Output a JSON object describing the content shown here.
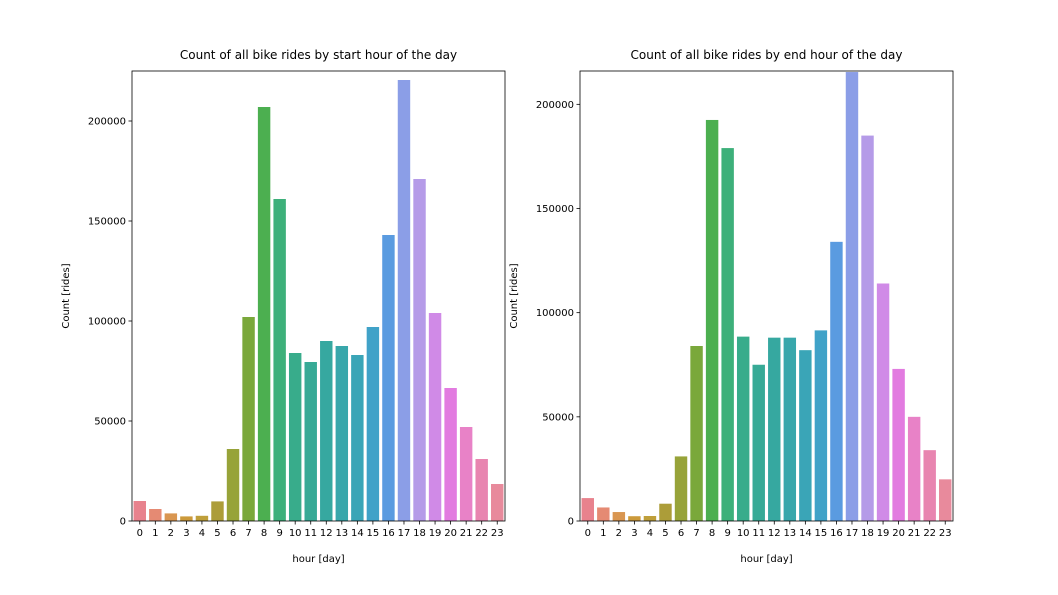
{
  "chart_data": [
    {
      "type": "bar",
      "title": "Count of all bike rides by start hour of the day",
      "xlabel": "hour [day]",
      "ylabel": "Count [rides]",
      "ylim": [
        0,
        225000
      ],
      "yticks": [
        0,
        50000,
        100000,
        150000,
        200000
      ],
      "ytick_labels": [
        "0",
        "50000",
        "100000",
        "150000",
        "200000"
      ],
      "grid": false,
      "categories": [
        "0",
        "1",
        "2",
        "3",
        "4",
        "5",
        "6",
        "7",
        "8",
        "9",
        "10",
        "11",
        "12",
        "13",
        "14",
        "15",
        "16",
        "17",
        "18",
        "19",
        "20",
        "21",
        "22",
        "23"
      ],
      "values": [
        10000,
        6000,
        3800,
        2300,
        2600,
        9800,
        36000,
        102000,
        207000,
        161000,
        84000,
        79500,
        90000,
        87500,
        83000,
        97000,
        143000,
        220500,
        171000,
        104000,
        66500,
        47000,
        31000,
        18500
      ]
    },
    {
      "type": "bar",
      "title": "Count of all bike rides by end hour of the day",
      "xlabel": "hour [day]",
      "ylabel": "Count [rides]",
      "ylim": [
        0,
        216000
      ],
      "yticks": [
        0,
        50000,
        100000,
        150000,
        200000
      ],
      "ytick_labels": [
        "0",
        "50000",
        "100000",
        "150000",
        "200000"
      ],
      "grid": false,
      "categories": [
        "0",
        "1",
        "2",
        "3",
        "4",
        "5",
        "6",
        "7",
        "8",
        "9",
        "10",
        "11",
        "12",
        "13",
        "14",
        "15",
        "16",
        "17",
        "18",
        "19",
        "20",
        "21",
        "22",
        "23"
      ],
      "values": [
        11000,
        6500,
        4300,
        2300,
        2400,
        8300,
        31000,
        84000,
        192500,
        179000,
        88500,
        75000,
        88000,
        88000,
        82000,
        91500,
        134000,
        215500,
        185000,
        114000,
        73000,
        50000,
        34000,
        20000
      ]
    }
  ],
  "palette": [
    "#e8828d",
    "#e58a73",
    "#d99651",
    "#cc9a3b",
    "#bf9f3a",
    "#ac9d39",
    "#97a339",
    "#7aa83b",
    "#4caf50",
    "#3db07a",
    "#38ac8b",
    "#37aa96",
    "#36a8a0",
    "#38a7ab",
    "#3aa5b7",
    "#40a2c8",
    "#5a9be0",
    "#8b9ee7",
    "#b59be8",
    "#d08ae7",
    "#e27be0",
    "#e882c7",
    "#e885b0",
    "#e88a9c"
  ]
}
